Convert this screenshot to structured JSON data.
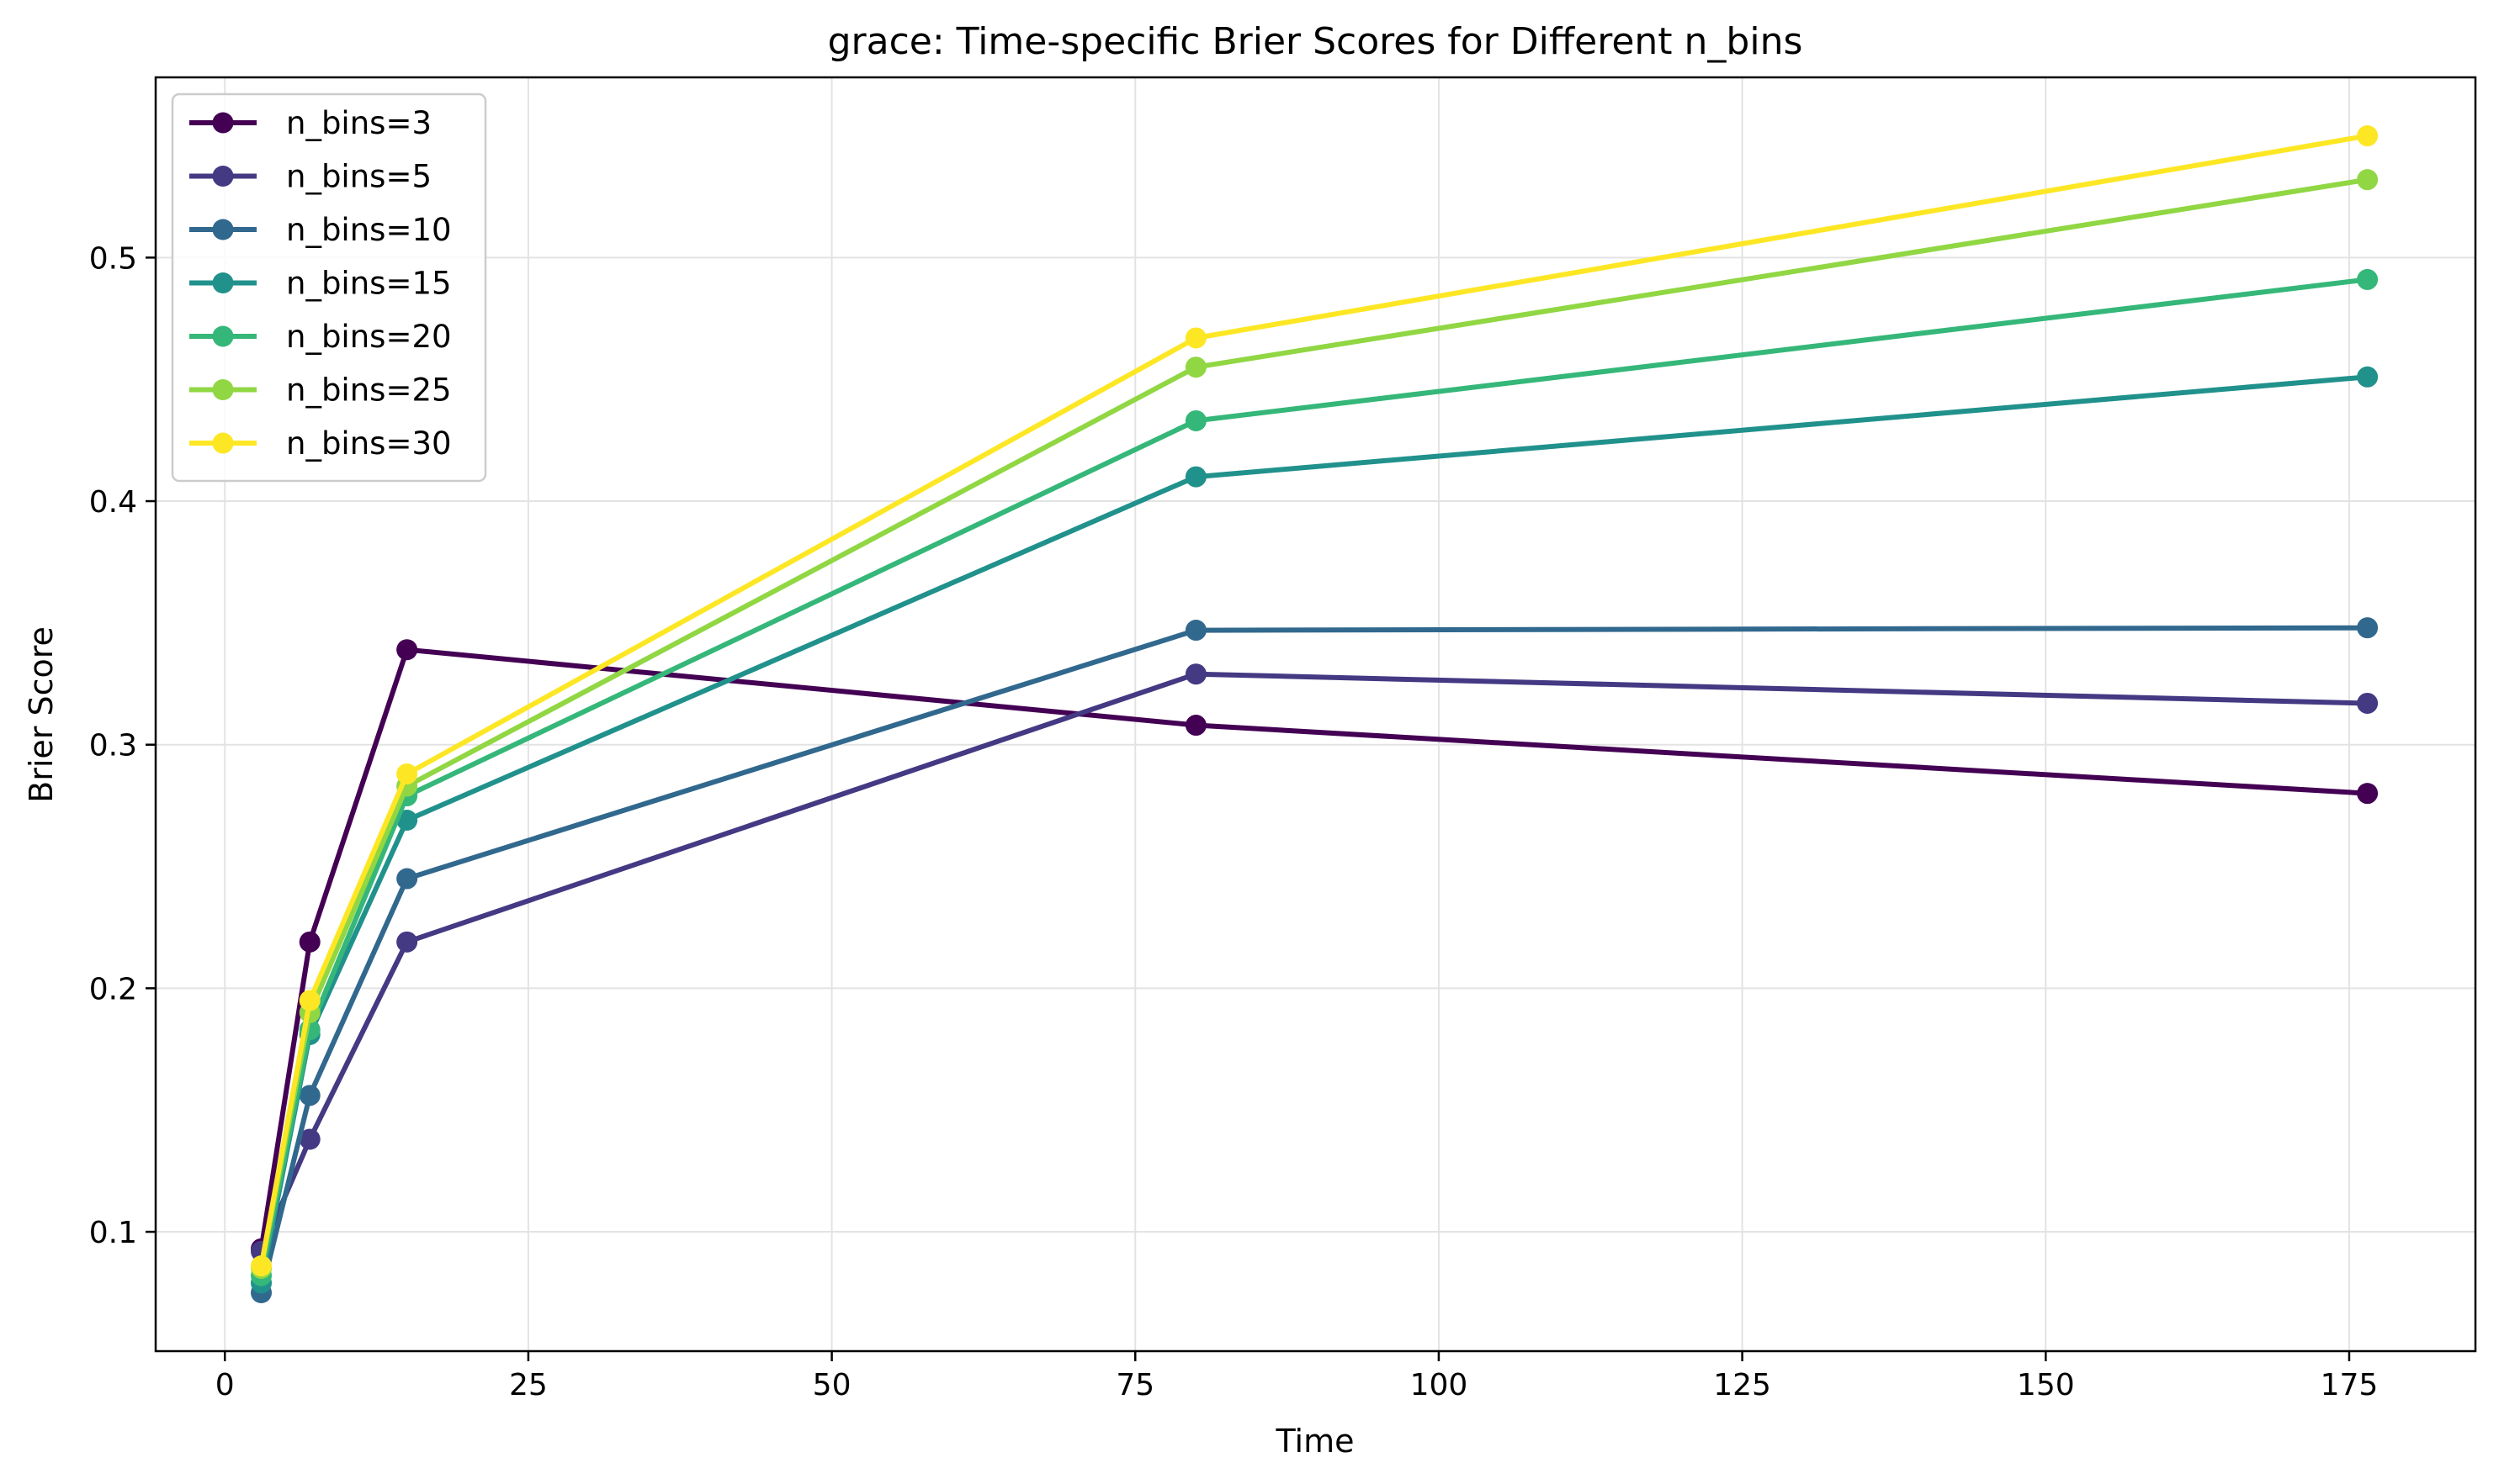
{
  "chart_data": {
    "type": "line",
    "title": "grace: Time-specific Brier Scores for Different n_bins",
    "xlabel": "Time",
    "ylabel": "Brier Score",
    "xlim": [
      -5.7,
      185.4
    ],
    "ylim": [
      0.051,
      0.574
    ],
    "xticks": [
      0,
      25,
      50,
      75,
      100,
      125,
      150,
      175
    ],
    "yticks": [
      0.1,
      0.2,
      0.3,
      0.4,
      0.5
    ],
    "xtick_labels": [
      "0",
      "25",
      "50",
      "75",
      "100",
      "125",
      "150",
      "175"
    ],
    "ytick_labels": [
      "0.1",
      "0.2",
      "0.3",
      "0.4",
      "0.5"
    ],
    "grid": true,
    "legend_position": "top-left",
    "x": [
      3,
      7,
      15,
      80,
      176.5
    ],
    "series": [
      {
        "name": "n_bins=3",
        "color": "#440154",
        "values": [
          0.093,
          0.219,
          0.339,
          0.308,
          0.28
        ]
      },
      {
        "name": "n_bins=5",
        "color": "#443983",
        "values": [
          0.092,
          0.138,
          0.219,
          0.329,
          0.317
        ]
      },
      {
        "name": "n_bins=10",
        "color": "#31688e",
        "values": [
          0.075,
          0.156,
          0.245,
          0.347,
          0.348
        ]
      },
      {
        "name": "n_bins=15",
        "color": "#21918c",
        "values": [
          0.079,
          0.181,
          0.269,
          0.41,
          0.451
        ]
      },
      {
        "name": "n_bins=20",
        "color": "#35b779",
        "values": [
          0.082,
          0.183,
          0.279,
          0.433,
          0.491
        ]
      },
      {
        "name": "n_bins=25",
        "color": "#90d743",
        "values": [
          0.085,
          0.19,
          0.283,
          0.455,
          0.532
        ]
      },
      {
        "name": "n_bins=30",
        "color": "#fde725",
        "values": [
          0.086,
          0.195,
          0.288,
          0.467,
          0.55
        ]
      }
    ]
  }
}
